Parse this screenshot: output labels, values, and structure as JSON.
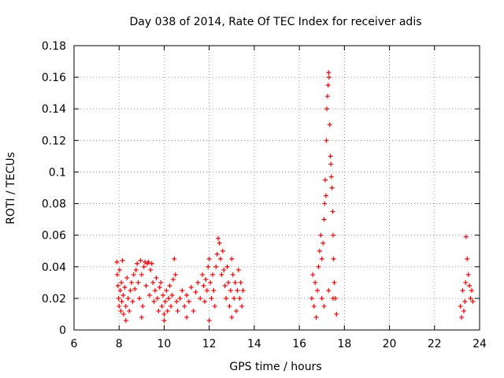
{
  "chart_data": {
    "type": "scatter",
    "title": "Day 038 of 2014, Rate Of TEC Index for receiver adis",
    "xlabel": "GPS time / hours",
    "ylabel": "ROTI / TECUs",
    "xlim": [
      6,
      24
    ],
    "ylim": [
      0,
      0.18
    ],
    "xticks": [
      6,
      8,
      10,
      12,
      14,
      16,
      18,
      20,
      22,
      24
    ],
    "yticks": [
      0,
      0.02,
      0.04,
      0.06,
      0.08,
      0.1,
      0.12,
      0.14,
      0.16,
      0.18
    ],
    "xtick_labels": [
      "6",
      "8",
      "10",
      "12",
      "14",
      "16",
      "18",
      "20",
      "22",
      "24"
    ],
    "ytick_labels": [
      "0",
      "0.02",
      "0.04",
      "0.06",
      "0.08",
      "0.1",
      "0.12",
      "0.14",
      "0.16",
      "0.18"
    ],
    "grid": true,
    "marker": "+",
    "marker_color": "#ff0000",
    "series": [
      {
        "name": "ROTI",
        "points": [
          [
            7.9,
            0.043
          ],
          [
            7.92,
            0.035
          ],
          [
            7.95,
            0.028
          ],
          [
            7.98,
            0.02
          ],
          [
            8.0,
            0.015
          ],
          [
            8.02,
            0.038
          ],
          [
            8.05,
            0.025
          ],
          [
            8.08,
            0.012
          ],
          [
            8.1,
            0.03
          ],
          [
            8.12,
            0.018
          ],
          [
            8.15,
            0.044
          ],
          [
            8.18,
            0.022
          ],
          [
            8.2,
            0.01
          ],
          [
            8.25,
            0.027
          ],
          [
            8.3,
            0.015
          ],
          [
            8.35,
            0.033
          ],
          [
            8.4,
            0.02
          ],
          [
            8.45,
            0.012
          ],
          [
            8.5,
            0.025
          ],
          [
            8.55,
            0.03
          ],
          [
            8.6,
            0.018
          ],
          [
            8.65,
            0.035
          ],
          [
            8.7,
            0.026
          ],
          [
            8.75,
            0.038
          ],
          [
            8.8,
            0.042
          ],
          [
            8.85,
            0.03
          ],
          [
            8.9,
            0.02
          ],
          [
            8.95,
            0.044
          ],
          [
            9.0,
            0.035
          ],
          [
            9.05,
            0.015
          ],
          [
            9.1,
            0.04
          ],
          [
            9.15,
            0.043
          ],
          [
            9.2,
            0.028
          ],
          [
            9.25,
            0.042
          ],
          [
            9.3,
            0.043
          ],
          [
            9.35,
            0.022
          ],
          [
            9.4,
            0.038
          ],
          [
            9.45,
            0.042
          ],
          [
            9.5,
            0.03
          ],
          [
            9.55,
            0.018
          ],
          [
            9.6,
            0.025
          ],
          [
            9.65,
            0.033
          ],
          [
            9.7,
            0.02
          ],
          [
            9.75,
            0.012
          ],
          [
            9.8,
            0.027
          ],
          [
            9.85,
            0.03
          ],
          [
            9.9,
            0.015
          ],
          [
            9.95,
            0.022
          ],
          [
            10.0,
            0.01
          ],
          [
            10.05,
            0.018
          ],
          [
            10.1,
            0.025
          ],
          [
            10.15,
            0.012
          ],
          [
            10.2,
            0.02
          ],
          [
            10.25,
            0.028
          ],
          [
            10.3,
            0.015
          ],
          [
            10.35,
            0.022
          ],
          [
            10.4,
            0.032
          ],
          [
            10.45,
            0.045
          ],
          [
            10.5,
            0.035
          ],
          [
            10.55,
            0.018
          ],
          [
            10.6,
            0.012
          ],
          [
            10.7,
            0.02
          ],
          [
            10.8,
            0.025
          ],
          [
            10.9,
            0.015
          ],
          [
            11.0,
            0.022
          ],
          [
            11.1,
            0.018
          ],
          [
            11.2,
            0.027
          ],
          [
            11.3,
            0.012
          ],
          [
            11.4,
            0.024
          ],
          [
            11.5,
            0.03
          ],
          [
            11.6,
            0.02
          ],
          [
            11.7,
            0.035
          ],
          [
            11.75,
            0.028
          ],
          [
            11.8,
            0.018
          ],
          [
            11.85,
            0.032
          ],
          [
            11.9,
            0.025
          ],
          [
            11.95,
            0.04
          ],
          [
            12.0,
            0.045
          ],
          [
            12.05,
            0.03
          ],
          [
            12.1,
            0.02
          ],
          [
            12.15,
            0.035
          ],
          [
            12.2,
            0.025
          ],
          [
            12.25,
            0.015
          ],
          [
            12.3,
            0.04
          ],
          [
            12.35,
            0.048
          ],
          [
            12.4,
            0.058
          ],
          [
            12.45,
            0.055
          ],
          [
            12.5,
            0.045
          ],
          [
            12.55,
            0.035
          ],
          [
            12.6,
            0.05
          ],
          [
            12.65,
            0.038
          ],
          [
            12.7,
            0.028
          ],
          [
            12.75,
            0.02
          ],
          [
            12.8,
            0.04
          ],
          [
            12.85,
            0.03
          ],
          [
            12.9,
            0.015
          ],
          [
            12.95,
            0.025
          ],
          [
            13.0,
            0.045
          ],
          [
            13.05,
            0.035
          ],
          [
            13.1,
            0.02
          ],
          [
            13.15,
            0.03
          ],
          [
            13.2,
            0.012
          ],
          [
            13.25,
            0.025
          ],
          [
            13.3,
            0.038
          ],
          [
            13.35,
            0.02
          ],
          [
            13.4,
            0.03
          ],
          [
            13.45,
            0.015
          ],
          [
            13.5,
            0.025
          ],
          [
            8.3,
            0.006
          ],
          [
            9.0,
            0.008
          ],
          [
            10.0,
            0.006
          ],
          [
            11.0,
            0.008
          ],
          [
            12.0,
            0.006
          ],
          [
            13.0,
            0.008
          ],
          [
            16.55,
            0.02
          ],
          [
            16.6,
            0.035
          ],
          [
            16.65,
            0.015
          ],
          [
            16.7,
            0.03
          ],
          [
            16.75,
            0.008
          ],
          [
            16.8,
            0.025
          ],
          [
            16.85,
            0.04
          ],
          [
            16.9,
            0.05
          ],
          [
            16.95,
            0.06
          ],
          [
            17.0,
            0.045
          ],
          [
            17.05,
            0.055
          ],
          [
            17.1,
            0.07
          ],
          [
            17.12,
            0.08
          ],
          [
            17.15,
            0.095
          ],
          [
            17.18,
            0.085
          ],
          [
            17.2,
            0.12
          ],
          [
            17.22,
            0.14
          ],
          [
            17.25,
            0.148
          ],
          [
            17.28,
            0.155
          ],
          [
            17.3,
            0.163
          ],
          [
            17.32,
            0.16
          ],
          [
            17.35,
            0.13
          ],
          [
            17.38,
            0.11
          ],
          [
            17.4,
            0.105
          ],
          [
            17.42,
            0.097
          ],
          [
            17.45,
            0.09
          ],
          [
            17.48,
            0.075
          ],
          [
            17.5,
            0.06
          ],
          [
            17.52,
            0.045
          ],
          [
            17.55,
            0.03
          ],
          [
            17.6,
            0.02
          ],
          [
            17.65,
            0.01
          ],
          [
            17.0,
            0.02
          ],
          [
            17.1,
            0.015
          ],
          [
            17.3,
            0.025
          ],
          [
            17.5,
            0.02
          ],
          [
            23.15,
            0.015
          ],
          [
            23.2,
            0.008
          ],
          [
            23.25,
            0.025
          ],
          [
            23.3,
            0.012
          ],
          [
            23.35,
            0.018
          ],
          [
            23.38,
            0.03
          ],
          [
            23.4,
            0.059
          ],
          [
            23.45,
            0.045
          ],
          [
            23.5,
            0.035
          ],
          [
            23.55,
            0.028
          ],
          [
            23.6,
            0.02
          ],
          [
            23.65,
            0.025
          ],
          [
            23.7,
            0.018
          ]
        ]
      }
    ]
  }
}
